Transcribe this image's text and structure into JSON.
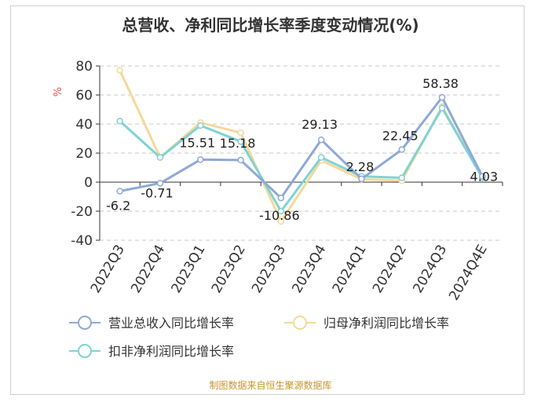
{
  "title": "总营收、净利同比增长率季度变动情况(%)",
  "source": "制图数据来自恒生聚源数据库",
  "chart_data": {
    "type": "line",
    "title": "总营收、净利同比增长率季度变动情况(%)",
    "ylabel": "%",
    "xlabel": "",
    "ylim": [
      -40,
      80
    ],
    "yticks": [
      80,
      60,
      40,
      20,
      0,
      -20,
      -40
    ],
    "grid": true,
    "legend_position": "bottom",
    "categories": [
      "2022Q3",
      "2022Q4",
      "2023Q1",
      "2023Q2",
      "2023Q3",
      "2023Q4",
      "2024Q1",
      "2024Q2",
      "2024Q3",
      "2024Q4E"
    ],
    "series": [
      {
        "name": "营业总收入同比增长率",
        "color": "#8fa9d6",
        "values": [
          -6.2,
          -0.71,
          15.51,
          15.18,
          -10.86,
          29.13,
          2.28,
          22.45,
          58.38,
          4.03
        ],
        "labels": [
          "-6.2",
          "-0.71",
          "15.51",
          "15.18",
          "-10.86",
          "29.13",
          "2.28",
          "22.45",
          "58.38",
          "4.03"
        ]
      },
      {
        "name": "归母净利润同比增长率",
        "color": "#f5d89a",
        "values": [
          77,
          17,
          41,
          34,
          -27,
          15,
          2,
          1,
          52,
          3
        ]
      },
      {
        "name": "扣非净利润同比增长率",
        "color": "#7fd3d3",
        "values": [
          42,
          17,
          39,
          28,
          -20,
          17,
          4,
          3,
          51,
          3
        ]
      }
    ]
  }
}
